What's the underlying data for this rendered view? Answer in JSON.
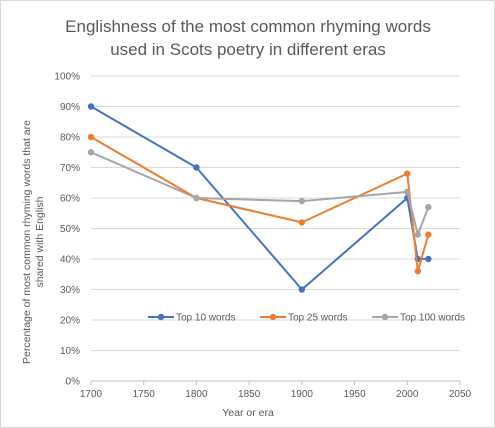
{
  "chart_data": {
    "type": "line",
    "title_lines": [
      "Englishness of the most common rhyming words",
      "used in Scots poetry in different eras"
    ],
    "xlabel": "Year or era",
    "ylabel_lines": [
      "Percentage of most common rhyming words that are",
      "shared with English"
    ],
    "xlim": [
      1700,
      2050
    ],
    "ylim": [
      0,
      1
    ],
    "x_ticks": [
      1700,
      1750,
      1800,
      1850,
      1900,
      1950,
      2000,
      2050
    ],
    "x_tick_labels": [
      "1700",
      "1750",
      "1800",
      "1850",
      "1900",
      "1950",
      "2000",
      "2050"
    ],
    "y_ticks": [
      0,
      0.1,
      0.2,
      0.3,
      0.4,
      0.5,
      0.6,
      0.7,
      0.8,
      0.9,
      1.0
    ],
    "y_tick_labels": [
      "0%",
      "10%",
      "20%",
      "30%",
      "40%",
      "50%",
      "60%",
      "70%",
      "80%",
      "90%",
      "100%"
    ],
    "grid": true,
    "legend_position": "inside-bottom",
    "series": [
      {
        "name": "Top 10 words",
        "color": "#4472C4",
        "points": [
          [
            1700,
            0.9
          ],
          [
            1800,
            0.7
          ],
          [
            1900,
            0.3
          ],
          [
            2000,
            0.6
          ],
          [
            2010,
            0.4
          ],
          [
            2020,
            0.4
          ]
        ]
      },
      {
        "name": "Top 25 words",
        "color": "#ED7D31",
        "points": [
          [
            1700,
            0.8
          ],
          [
            1800,
            0.6
          ],
          [
            1900,
            0.52
          ],
          [
            2000,
            0.68
          ],
          [
            2010,
            0.36
          ],
          [
            2020,
            0.48
          ]
        ]
      },
      {
        "name": "Top 100 words",
        "color": "#A5A5A5",
        "points": [
          [
            1700,
            0.75
          ],
          [
            1800,
            0.6
          ],
          [
            1900,
            0.59
          ],
          [
            2000,
            0.62
          ],
          [
            2010,
            0.48
          ],
          [
            2020,
            0.57
          ]
        ]
      }
    ]
  }
}
